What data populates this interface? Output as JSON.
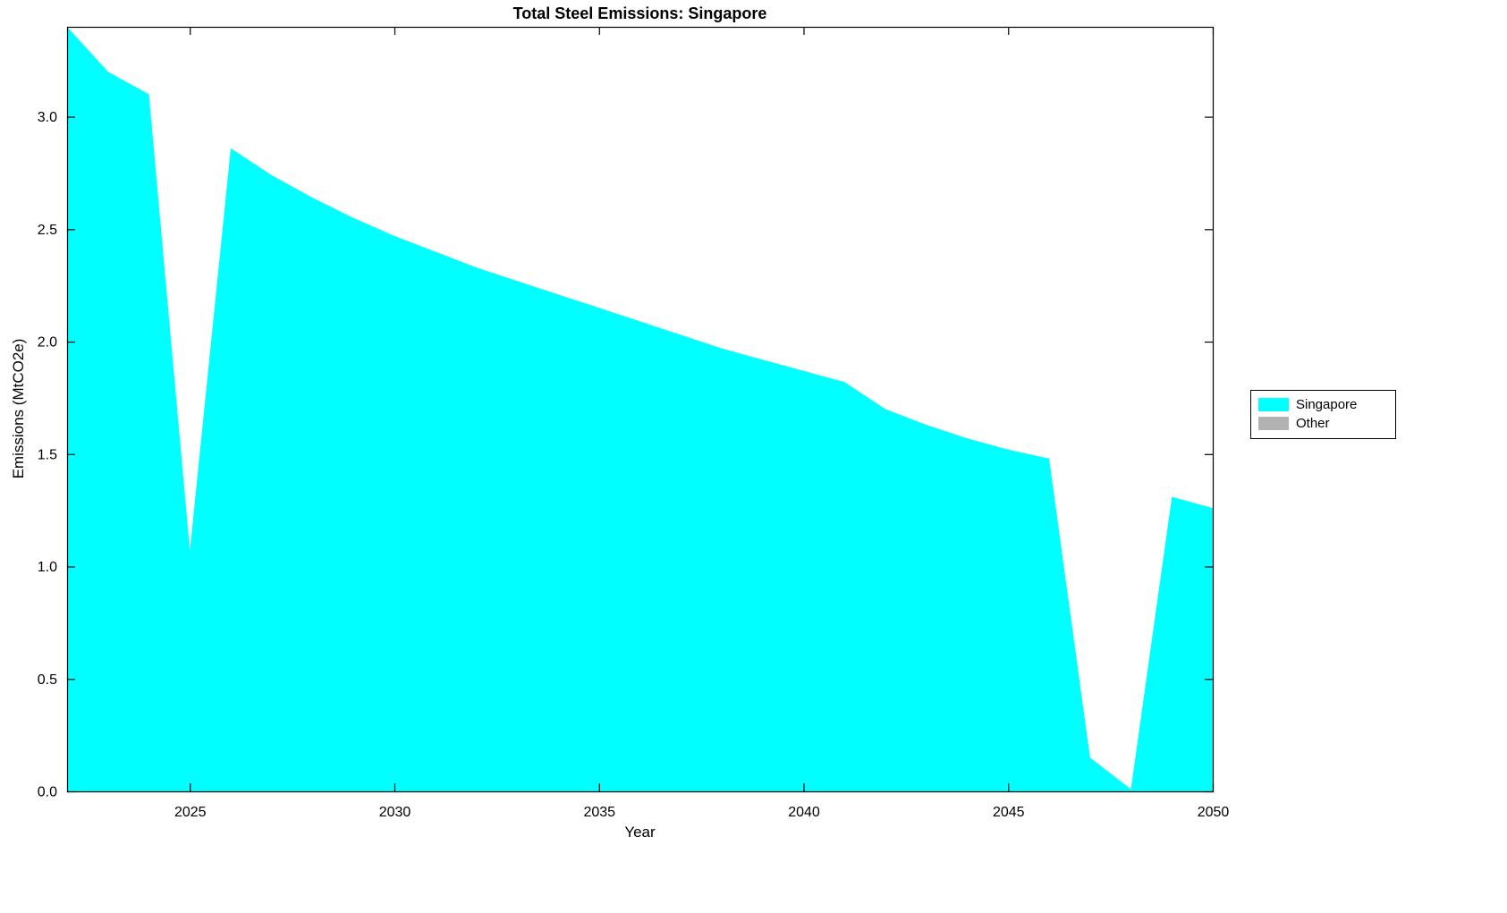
{
  "chart_data": {
    "type": "area",
    "title": "Total Steel Emissions: Singapore",
    "xlabel": "Year",
    "ylabel": "Emissions (MtCO2e)",
    "xlim": [
      2022,
      2050
    ],
    "ylim": [
      0,
      3.4
    ],
    "xtick_values": [
      2025,
      2030,
      2035,
      2040,
      2045,
      2050
    ],
    "xtick_labels": [
      "2025",
      "2030",
      "2035",
      "2040",
      "2045",
      "2050"
    ],
    "ytick_values": [
      0,
      0.5,
      1.0,
      1.5,
      2.0,
      2.5,
      3.0
    ],
    "ytick_labels": [
      "0.0",
      "0.5",
      "1.0",
      "1.5",
      "2.0",
      "2.5",
      "3.0"
    ],
    "grid": false,
    "legend_position": "right-outside",
    "x": [
      2022,
      2023,
      2024,
      2025,
      2026,
      2027,
      2028,
      2029,
      2030,
      2031,
      2032,
      2033,
      2034,
      2035,
      2036,
      2037,
      2038,
      2039,
      2040,
      2041,
      2042,
      2043,
      2044,
      2045,
      2046,
      2047,
      2048,
      2049,
      2050
    ],
    "series": [
      {
        "name": "Singapore",
        "color": "#00FFFF",
        "values": [
          3.4,
          3.2,
          3.1,
          1.07,
          2.86,
          2.74,
          2.64,
          2.55,
          2.47,
          2.4,
          2.33,
          2.27,
          2.21,
          2.15,
          2.09,
          2.03,
          1.97,
          1.92,
          1.87,
          1.82,
          1.7,
          1.63,
          1.57,
          1.52,
          1.48,
          0.15,
          0.01,
          1.31,
          1.26
        ]
      },
      {
        "name": "Other",
        "color": "#B2B2B2",
        "values": [
          0,
          0,
          0,
          0,
          0,
          0,
          0,
          0,
          0,
          0,
          0,
          0,
          0,
          0,
          0,
          0,
          0,
          0,
          0,
          0,
          0,
          0,
          0,
          0,
          0,
          0,
          0,
          0,
          0
        ]
      }
    ]
  }
}
